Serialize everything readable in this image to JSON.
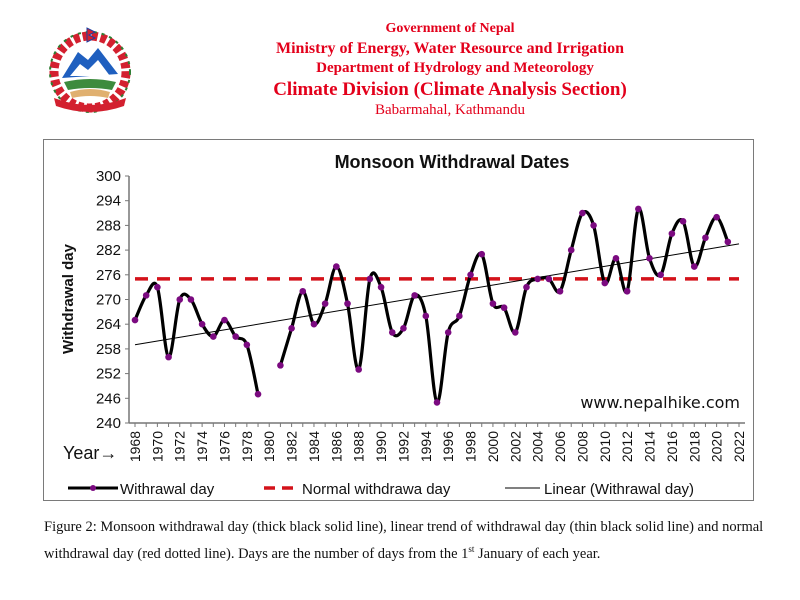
{
  "header": {
    "government": "Government of Nepal",
    "ministry": "Ministry of Energy, Water Resource and Irrigation",
    "department": "Department of Hydrology and Meteorology",
    "division": "Climate Division (Climate Analysis Section)",
    "address": "Babarmahal, Kathmandu",
    "logo_icon": "nepal-emblem-icon"
  },
  "watermark": "www.nepalhike.com",
  "caption": {
    "part1": "Figure 2: Monsoon withdrawal day (thick black solid line), linear trend of withdrawal day (thin black solid line) and normal withdrawal day (red dotted line). Days are the number of days from the 1",
    "sup": "st",
    "part2": " January of each year."
  },
  "colors": {
    "header_red": "#e3001b",
    "series_line": "#000000",
    "marker": "#7b0a80",
    "normal_line": "#d4121a",
    "trend_line": "#000000"
  },
  "chart_data": {
    "type": "line",
    "title": "Monsoon Withdrawal Dates",
    "xlabel": "Year→",
    "ylabel": "Withdrawal day",
    "ylim": [
      240,
      300
    ],
    "yticks": [
      240,
      246,
      252,
      258,
      264,
      270,
      276,
      282,
      288,
      294,
      300
    ],
    "xlim": [
      1968,
      2022
    ],
    "xticks": [
      1968,
      1970,
      1972,
      1974,
      1976,
      1978,
      1980,
      1982,
      1984,
      1986,
      1988,
      1990,
      1992,
      1994,
      1996,
      1998,
      2000,
      2002,
      2004,
      2006,
      2008,
      2010,
      2012,
      2014,
      2016,
      2018,
      2020,
      2022
    ],
    "grid": false,
    "legend_position": "bottom",
    "series": [
      {
        "name": "Withrawal day",
        "style": "thick black smoothed line with purple markers",
        "x": [
          1968,
          1969,
          1970,
          1971,
          1972,
          1973,
          1974,
          1975,
          1976,
          1977,
          1978,
          1979,
          1980,
          1981,
          1982,
          1983,
          1984,
          1985,
          1986,
          1987,
          1988,
          1989,
          1990,
          1991,
          1992,
          1993,
          1994,
          1995,
          1996,
          1997,
          1998,
          1999,
          2000,
          2001,
          2002,
          2003,
          2004,
          2005,
          2006,
          2007,
          2008,
          2009,
          2010,
          2011,
          2012,
          2013,
          2014,
          2015,
          2016,
          2017,
          2018,
          2019,
          2020,
          2021
        ],
        "values": [
          265,
          271,
          273,
          256,
          270,
          270,
          264,
          261,
          265,
          261,
          259,
          247,
          null,
          254,
          263,
          272,
          264,
          269,
          278,
          269,
          253,
          275,
          273,
          262,
          263,
          271,
          266,
          245,
          262,
          266,
          276,
          281,
          269,
          268,
          262,
          273,
          275,
          275,
          272,
          282,
          291,
          288,
          274,
          280,
          272,
          292,
          280,
          276,
          286,
          289,
          278,
          285,
          290,
          284
        ]
      },
      {
        "name": "Normal withdrawa day",
        "style": "red dashed horizontal line",
        "value": 275
      },
      {
        "name": "Linear (Withrawal day)",
        "style": "thin black straight line",
        "x": [
          1968,
          2022
        ],
        "values": [
          259,
          283.5
        ]
      }
    ]
  }
}
